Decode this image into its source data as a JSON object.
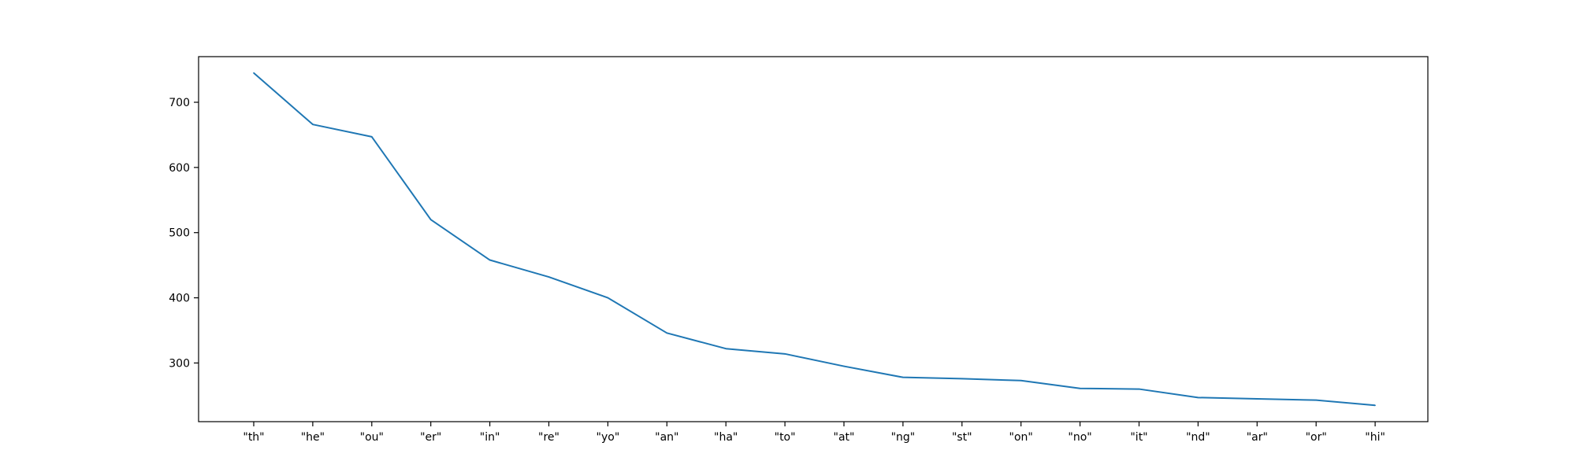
{
  "chart_data": {
    "type": "line",
    "title": "",
    "xlabel": "",
    "ylabel": "",
    "categories": [
      "\"th\"",
      "\"he\"",
      "\"ou\"",
      "\"er\"",
      "\"in\"",
      "\"re\"",
      "\"yo\"",
      "\"an\"",
      "\"ha\"",
      "\"to\"",
      "\"at\"",
      "\"ng\"",
      "\"st\"",
      "\"on\"",
      "\"no\"",
      "\"it\"",
      "\"nd\"",
      "\"ar\"",
      "\"or\"",
      "\"hi\""
    ],
    "series": [
      {
        "color": "#1f77b4",
        "values": [
          745,
          666,
          647,
          520,
          458,
          432,
          400,
          346,
          322,
          314,
          295,
          278,
          276,
          273,
          261,
          260,
          247,
          245,
          243,
          235
        ]
      }
    ],
    "yticks": [
      300,
      400,
      500,
      600,
      700
    ],
    "ylim": [
      210,
      770
    ],
    "grid": false,
    "legend": "none"
  }
}
